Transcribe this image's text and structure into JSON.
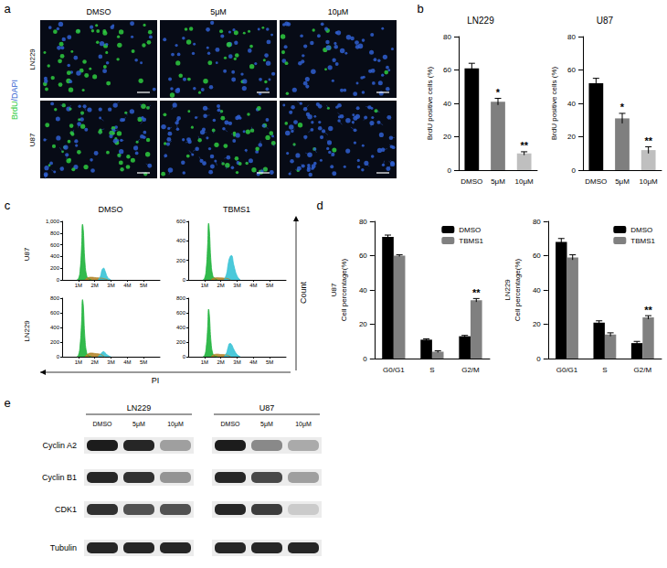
{
  "panel_labels": [
    "a",
    "b",
    "c",
    "d",
    "e"
  ],
  "panel_a": {
    "stain_label": [
      {
        "text": "BrdU",
        "color": "#2ecc40"
      },
      {
        "text": "/DAPI",
        "color": "#2f5fd0"
      }
    ],
    "columns": [
      "DMSO",
      "5μM",
      "10μM"
    ],
    "rows": [
      "LN229",
      "U87"
    ]
  },
  "panel_c": {
    "columns": [
      "DMSO",
      "TBMS1"
    ],
    "rows": [
      "U87",
      "LN229"
    ],
    "x_label": "PI",
    "y_label": "Count"
  },
  "panel_e": {
    "groups": [
      "LN229",
      "U87"
    ],
    "lanes": [
      "DMSO",
      "5μM",
      "10μM",
      "DMSO",
      "5μM",
      "10μM"
    ],
    "proteins": [
      {
        "name": "Cyclin A2",
        "intensity": [
          0.95,
          0.9,
          0.35,
          0.95,
          0.45,
          0.3
        ]
      },
      {
        "name": "Cyclin B1",
        "intensity": [
          0.9,
          0.85,
          0.4,
          0.9,
          0.75,
          0.35
        ]
      },
      {
        "name": "CDK1",
        "intensity": [
          0.85,
          0.7,
          0.7,
          0.9,
          0.8,
          0.15
        ]
      },
      {
        "name": "Tubulin",
        "intensity": [
          0.9,
          0.9,
          0.9,
          0.9,
          0.9,
          0.9
        ]
      }
    ]
  },
  "chart_data": [
    {
      "type": "bar",
      "title": "LN229",
      "y_label": "BrdU positive cells (%)",
      "categories": [
        "DMSO",
        "5μM",
        "10μM"
      ],
      "values": [
        61,
        41,
        10
      ],
      "errors": [
        3,
        2,
        1
      ],
      "significance": [
        null,
        "*",
        "**"
      ],
      "colors": [
        "#000000",
        "#7f7f7f",
        "#bfbfbf"
      ],
      "ylim": [
        0,
        80
      ],
      "yticks": [
        0,
        20,
        40,
        60,
        80
      ],
      "grid": false
    },
    {
      "type": "bar",
      "title": "U87",
      "y_label": "BrdU positive cells (%)",
      "categories": [
        "DMSO",
        "5μM",
        "10μM"
      ],
      "values": [
        52,
        31,
        12
      ],
      "errors": [
        3,
        3,
        2
      ],
      "significance": [
        null,
        "*",
        "**"
      ],
      "colors": [
        "#000000",
        "#7f7f7f",
        "#bfbfbf"
      ],
      "ylim": [
        0,
        80
      ],
      "yticks": [
        0,
        20,
        40,
        60,
        80
      ],
      "grid": false
    },
    {
      "type": "area",
      "series": [
        {
          "color": "#1db33a",
          "x": [
            0.9,
            1.0,
            1.1,
            1.2,
            1.25,
            1.3,
            1.4,
            1.5,
            1.6,
            1.8
          ],
          "values": [
            0,
            20,
            150,
            600,
            950,
            850,
            300,
            80,
            30,
            0
          ]
        },
        {
          "color": "#b5862c",
          "x": [
            1.4,
            1.6,
            1.8,
            2.0,
            2.2,
            2.4,
            2.6,
            2.8
          ],
          "values": [
            0,
            40,
            45,
            40,
            35,
            30,
            20,
            0
          ]
        },
        {
          "color": "#37c3d6",
          "x": [
            2.2,
            2.35,
            2.45,
            2.55,
            2.65,
            2.8,
            3.0
          ],
          "values": [
            0,
            60,
            170,
            200,
            140,
            40,
            0
          ]
        }
      ],
      "xlim": [
        0,
        6
      ],
      "xticks": [
        {
          "value": 1,
          "label": "1M"
        },
        {
          "value": 2,
          "label": "2M"
        },
        {
          "value": 3,
          "label": "3M"
        },
        {
          "value": 4,
          "label": "4M"
        },
        {
          "value": 5,
          "label": "5M"
        }
      ],
      "ylim": [
        0,
        1000
      ],
      "yticks": [
        0,
        200,
        400,
        600,
        800,
        1000
      ],
      "grid": false
    },
    {
      "type": "area",
      "series": [
        {
          "color": "#1db33a",
          "x": [
            0.9,
            1.0,
            1.1,
            1.2,
            1.25,
            1.3,
            1.4,
            1.5,
            1.6,
            1.8
          ],
          "values": [
            0,
            15,
            100,
            380,
            580,
            500,
            180,
            50,
            20,
            0
          ]
        },
        {
          "color": "#b5862c",
          "x": [
            1.4,
            1.6,
            1.8,
            2.0,
            2.2,
            2.4,
            2.6
          ],
          "values": [
            0,
            20,
            22,
            20,
            18,
            15,
            0
          ]
        },
        {
          "color": "#37c3d6",
          "x": [
            2.2,
            2.35,
            2.45,
            2.55,
            2.65,
            2.8,
            3.0,
            3.2
          ],
          "values": [
            0,
            60,
            160,
            230,
            250,
            150,
            40,
            0
          ]
        }
      ],
      "xlim": [
        0,
        6
      ],
      "xticks": [
        {
          "value": 1,
          "label": "1M"
        },
        {
          "value": 2,
          "label": "2M"
        },
        {
          "value": 3,
          "label": "3M"
        },
        {
          "value": 4,
          "label": "4M"
        },
        {
          "value": 5,
          "label": "5M"
        }
      ],
      "ylim": [
        0,
        600
      ],
      "yticks": [
        0,
        200,
        400,
        600
      ],
      "grid": false
    },
    {
      "type": "area",
      "series": [
        {
          "color": "#1db33a",
          "x": [
            0.9,
            1.0,
            1.1,
            1.2,
            1.25,
            1.3,
            1.4,
            1.5,
            1.6,
            1.8
          ],
          "values": [
            0,
            20,
            150,
            500,
            780,
            700,
            250,
            60,
            20,
            0
          ]
        },
        {
          "color": "#b5862c",
          "x": [
            1.4,
            1.6,
            1.8,
            2.0,
            2.2,
            2.4,
            2.6
          ],
          "values": [
            0,
            40,
            50,
            45,
            40,
            30,
            0
          ]
        },
        {
          "color": "#37c3d6",
          "x": [
            2.2,
            2.35,
            2.45,
            2.55,
            2.65,
            2.8,
            3.0
          ],
          "values": [
            0,
            30,
            60,
            70,
            50,
            20,
            0
          ]
        }
      ],
      "xlim": [
        0,
        6
      ],
      "xticks": [
        {
          "value": 1,
          "label": "1M"
        },
        {
          "value": 2,
          "label": "2M"
        },
        {
          "value": 3,
          "label": "3M"
        },
        {
          "value": 4,
          "label": "4M"
        },
        {
          "value": 5,
          "label": "5M"
        }
      ],
      "ylim": [
        0,
        800
      ],
      "yticks": [
        0,
        200,
        400,
        600,
        800
      ],
      "grid": false
    },
    {
      "type": "area",
      "series": [
        {
          "color": "#1db33a",
          "x": [
            0.9,
            1.0,
            1.1,
            1.2,
            1.25,
            1.3,
            1.4,
            1.5,
            1.6,
            1.8
          ],
          "values": [
            0,
            15,
            120,
            420,
            650,
            560,
            200,
            50,
            15,
            0
          ]
        },
        {
          "color": "#b5862c",
          "x": [
            1.4,
            1.6,
            1.8,
            2.0,
            2.2,
            2.4,
            2.6
          ],
          "values": [
            0,
            30,
            35,
            30,
            28,
            22,
            0
          ]
        },
        {
          "color": "#37c3d6",
          "x": [
            2.2,
            2.35,
            2.45,
            2.55,
            2.65,
            2.8,
            3.0,
            3.2
          ],
          "values": [
            0,
            50,
            130,
            180,
            170,
            100,
            30,
            0
          ]
        }
      ],
      "xlim": [
        0,
        6
      ],
      "xticks": [
        {
          "value": 1,
          "label": "1M"
        },
        {
          "value": 2,
          "label": "2M"
        },
        {
          "value": 3,
          "label": "3M"
        },
        {
          "value": 4,
          "label": "4M"
        },
        {
          "value": 5,
          "label": "5M"
        }
      ],
      "ylim": [
        0,
        800
      ],
      "yticks": [
        0,
        200,
        400,
        600,
        800
      ],
      "grid": false
    },
    {
      "type": "bar",
      "title": "U87",
      "y_label": "Cell percentage(%)",
      "categories": [
        "G0/G1",
        "S",
        "G2/M"
      ],
      "series": [
        {
          "name": "DMSO",
          "color": "#000000",
          "values": [
            71,
            11,
            13
          ],
          "errors": [
            1,
            0.5,
            0.5
          ]
        },
        {
          "name": "TBMS1",
          "color": "#808080",
          "values": [
            60,
            4,
            34
          ],
          "errors": [
            0.5,
            0.5,
            1
          ],
          "significance": [
            null,
            null,
            "**"
          ]
        }
      ],
      "ylim": [
        0,
        80
      ],
      "yticks": [
        0,
        20,
        40,
        60,
        80
      ],
      "legend": "top-right",
      "grid": false
    },
    {
      "type": "bar",
      "title": "LN229",
      "y_label": "Cell percentage(%)",
      "categories": [
        "G0/G1",
        "S",
        "G2/M"
      ],
      "series": [
        {
          "name": "DMSO",
          "color": "#000000",
          "values": [
            68,
            21,
            9
          ],
          "errors": [
            2,
            1,
            1
          ]
        },
        {
          "name": "TBMS1",
          "color": "#808080",
          "values": [
            59,
            14,
            24
          ],
          "errors": [
            1.5,
            1,
            1
          ],
          "significance": [
            null,
            null,
            "**"
          ]
        }
      ],
      "ylim": [
        0,
        80
      ],
      "yticks": [
        0,
        20,
        40,
        60,
        80
      ],
      "legend": "top-right",
      "grid": false
    }
  ]
}
